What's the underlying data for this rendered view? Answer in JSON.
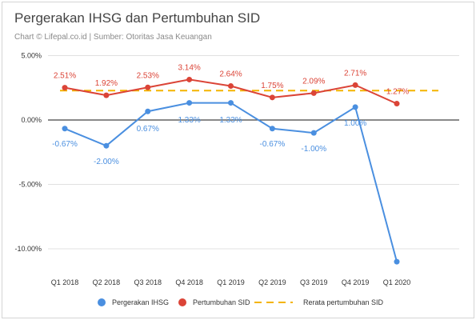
{
  "title": "Pergerakan IHSG dan Pertumbuhan SID",
  "subtitle": "Chart © Lifepal.co.id | Sumber: Otoritas Jasa Keuangan",
  "chart_data": {
    "type": "line",
    "categories": [
      "Q1 2018",
      "Q2 2018",
      "Q3 2018",
      "Q4 2018",
      "Q1 2019",
      "Q2 2019",
      "Q3 2019",
      "Q4 2019",
      "Q1 2020"
    ],
    "series": [
      {
        "name": "Pergerakan IHSG",
        "color": "#4a8fe0",
        "values": [
          -0.67,
          -2.0,
          0.67,
          1.33,
          1.33,
          -0.67,
          -1.0,
          1.0,
          -11.0
        ],
        "labels": [
          "-0.67%",
          "-2.00%",
          "0.67%",
          "1.33%",
          "1.33%",
          "-0.67%",
          "-1.00%",
          "1.00%",
          null
        ]
      },
      {
        "name": "Pertumbuhan SID",
        "color": "#db4437",
        "values": [
          2.51,
          1.92,
          2.53,
          3.14,
          2.64,
          1.75,
          2.09,
          2.71,
          1.27
        ],
        "labels": [
          "2.51%",
          "1.92%",
          "2.53%",
          "3.14%",
          "2.64%",
          "1.75%",
          "2.09%",
          "2.71%",
          "1.27%"
        ]
      },
      {
        "name": "Rerata pertumbuhan SID",
        "color": "#f4b400",
        "style": "dashed",
        "value": 2.28
      }
    ],
    "y_ticks": [
      5,
      0,
      -5,
      -10
    ],
    "y_tick_labels": [
      "5.00%",
      "0.00%",
      "-5.00%",
      "-10.00%"
    ],
    "ylim": [
      -11,
      5
    ],
    "grid": true,
    "legend_position": "bottom"
  }
}
